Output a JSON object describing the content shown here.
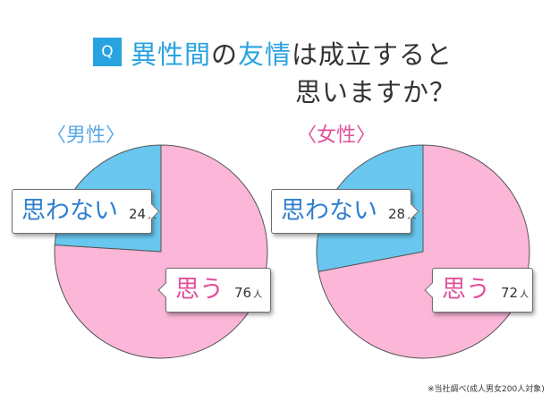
{
  "title": {
    "q_badge": "Q",
    "line1_highlight_1": "異性間",
    "line1_mid": "の",
    "line1_highlight_2": "友情",
    "line1_rest": "は成立すると",
    "line2": "思いますか？"
  },
  "colors": {
    "accent_blue": "#29a3e0",
    "pie_pink": "#fbb6d8",
    "pie_blue": "#69c6ee",
    "male_label": "#5aa9e6",
    "female_label": "#e2509b"
  },
  "chart_data": [
    {
      "type": "pie",
      "title": "〈男性〉",
      "unit": "人",
      "slices": [
        {
          "label": "思う",
          "value": 76,
          "color": "#fbb6d8"
        },
        {
          "label": "思わない",
          "value": 24,
          "color": "#69c6ee"
        }
      ]
    },
    {
      "type": "pie",
      "title": "〈女性〉",
      "unit": "人",
      "slices": [
        {
          "label": "思う",
          "value": 72,
          "color": "#fbb6d8"
        },
        {
          "label": "思わない",
          "value": 28,
          "color": "#69c6ee"
        }
      ]
    }
  ],
  "footnote": "※当社調べ(成人男女200人対象)"
}
